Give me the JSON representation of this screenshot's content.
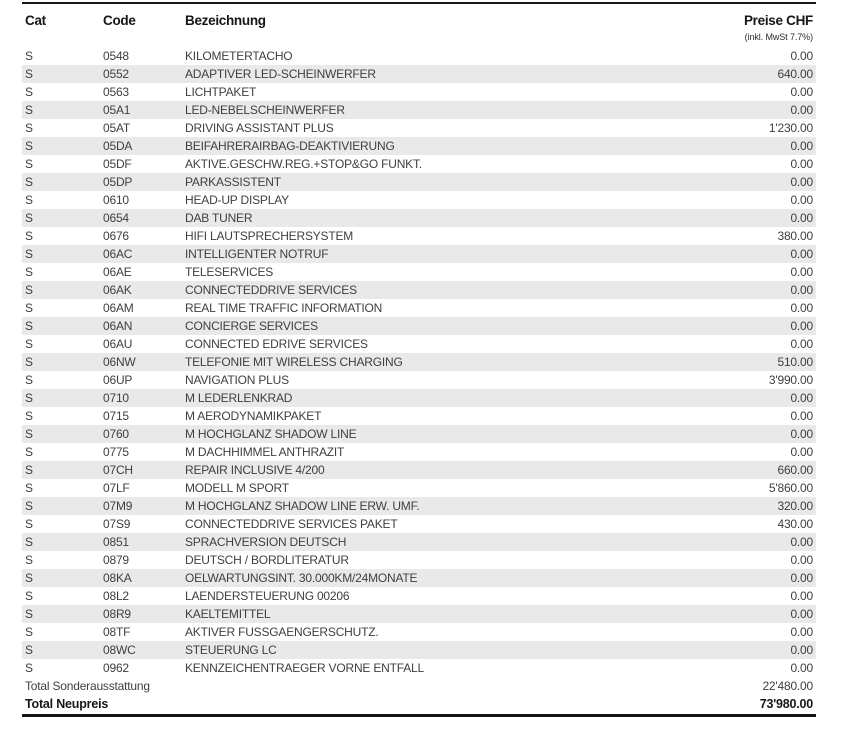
{
  "header": {
    "columns": [
      "Cat",
      "Code",
      "Bezeichnung",
      "Preise CHF"
    ],
    "vat_note": "(inkl. MwSt 7.7%)"
  },
  "rows": [
    {
      "cat": "S",
      "code": "0548",
      "name": "KILOMETERTACHO",
      "price": "0.00"
    },
    {
      "cat": "S",
      "code": "0552",
      "name": "ADAPTIVER LED-SCHEINWERFER",
      "price": "640.00"
    },
    {
      "cat": "S",
      "code": "0563",
      "name": "LICHTPAKET",
      "price": "0.00"
    },
    {
      "cat": "S",
      "code": "05A1",
      "name": "LED-NEBELSCHEINWERFER",
      "price": "0.00"
    },
    {
      "cat": "S",
      "code": "05AT",
      "name": "DRIVING ASSISTANT PLUS",
      "price": "1'230.00"
    },
    {
      "cat": "S",
      "code": "05DA",
      "name": "BEIFAHRERAIRBAG-DEAKTIVIERUNG",
      "price": "0.00"
    },
    {
      "cat": "S",
      "code": "05DF",
      "name": "AKTIVE.GESCHW.REG.+STOP&GO FUNKT.",
      "price": "0.00"
    },
    {
      "cat": "S",
      "code": "05DP",
      "name": "PARKASSISTENT",
      "price": "0.00"
    },
    {
      "cat": "S",
      "code": "0610",
      "name": "HEAD-UP DISPLAY",
      "price": "0.00"
    },
    {
      "cat": "S",
      "code": "0654",
      "name": "DAB TUNER",
      "price": "0.00"
    },
    {
      "cat": "S",
      "code": "0676",
      "name": "HIFI LAUTSPRECHERSYSTEM",
      "price": "380.00"
    },
    {
      "cat": "S",
      "code": "06AC",
      "name": "INTELLIGENTER NOTRUF",
      "price": "0.00"
    },
    {
      "cat": "S",
      "code": "06AE",
      "name": "TELESERVICES",
      "price": "0.00"
    },
    {
      "cat": "S",
      "code": "06AK",
      "name": "CONNECTEDDRIVE SERVICES",
      "price": "0.00"
    },
    {
      "cat": "S",
      "code": "06AM",
      "name": "REAL TIME TRAFFIC INFORMATION",
      "price": "0.00"
    },
    {
      "cat": "S",
      "code": "06AN",
      "name": "CONCIERGE SERVICES",
      "price": "0.00"
    },
    {
      "cat": "S",
      "code": "06AU",
      "name": "CONNECTED EDRIVE SERVICES",
      "price": "0.00"
    },
    {
      "cat": "S",
      "code": "06NW",
      "name": "TELEFONIE MIT WIRELESS CHARGING",
      "price": "510.00"
    },
    {
      "cat": "S",
      "code": "06UP",
      "name": "NAVIGATION PLUS",
      "price": "3'990.00"
    },
    {
      "cat": "S",
      "code": "0710",
      "name": "M LEDERLENKRAD",
      "price": "0.00"
    },
    {
      "cat": "S",
      "code": "0715",
      "name": "M AERODYNAMIKPAKET",
      "price": "0.00"
    },
    {
      "cat": "S",
      "code": "0760",
      "name": "M HOCHGLANZ SHADOW LINE",
      "price": "0.00"
    },
    {
      "cat": "S",
      "code": "0775",
      "name": "M DACHHIMMEL ANTHRAZIT",
      "price": "0.00"
    },
    {
      "cat": "S",
      "code": "07CH",
      "name": "REPAIR INCLUSIVE 4/200",
      "price": "660.00"
    },
    {
      "cat": "S",
      "code": "07LF",
      "name": "MODELL M SPORT",
      "price": "5'860.00"
    },
    {
      "cat": "S",
      "code": "07M9",
      "name": "M HOCHGLANZ SHADOW LINE ERW. UMF.",
      "price": "320.00"
    },
    {
      "cat": "S",
      "code": "07S9",
      "name": "CONNECTEDDRIVE SERVICES PAKET",
      "price": "430.00"
    },
    {
      "cat": "S",
      "code": "0851",
      "name": "SPRACHVERSION DEUTSCH",
      "price": "0.00"
    },
    {
      "cat": "S",
      "code": "0879",
      "name": "DEUTSCH / BORDLITERATUR",
      "price": "0.00"
    },
    {
      "cat": "S",
      "code": "08KA",
      "name": "OELWARTUNGSINT. 30.000KM/24MONATE",
      "price": "0.00"
    },
    {
      "cat": "S",
      "code": "08L2",
      "name": "LAENDERSTEUERUNG 00206",
      "price": "0.00"
    },
    {
      "cat": "S",
      "code": "08R9",
      "name": "KAELTEMITTEL",
      "price": "0.00"
    },
    {
      "cat": "S",
      "code": "08TF",
      "name": "AKTIVER FUSSGAENGERSCHUTZ.",
      "price": "0.00"
    },
    {
      "cat": "S",
      "code": "08WC",
      "name": "STEUERUNG LC",
      "price": "0.00"
    },
    {
      "cat": "S",
      "code": "0962",
      "name": "KENNZEICHENTRAEGER VORNE ENTFALL",
      "price": "0.00"
    }
  ],
  "totals": {
    "options_label": "Total Sonderausstattung",
    "options_value": "22'480.00",
    "total_label": "Total Neupreis",
    "total_value": "73'980.00"
  },
  "colors": {
    "zebra_row": "#e9e9e9",
    "body_text": "#3f3f3f",
    "rule": "#161616"
  }
}
